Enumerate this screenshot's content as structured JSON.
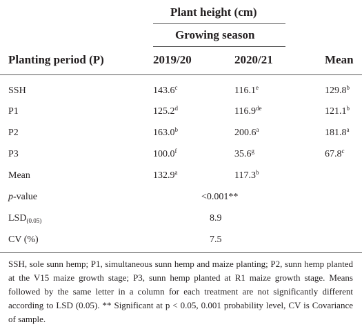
{
  "header": {
    "group_title": "Plant height (cm)",
    "subgroup_title": "Growing season",
    "row_header": "Planting period (P)",
    "col_2019": "2019/20",
    "col_2020": "2020/21",
    "col_mean": "Mean"
  },
  "rows": [
    {
      "label": "SSH",
      "v1": "143.6",
      "s1": "c",
      "v2": "116.1",
      "s2": "e",
      "v3": "129.8",
      "s3": "b"
    },
    {
      "label": "P1",
      "v1": "125.2",
      "s1": "d",
      "v2": "116.9",
      "s2": "de",
      "v3": "121.1",
      "s3": "b"
    },
    {
      "label": "P2",
      "v1": "163.0",
      "s1": "b",
      "v2": "200.6",
      "s2": "a",
      "v3": "181.8",
      "s3": "a"
    },
    {
      "label": "P3",
      "v1": "100.0",
      "s1": "f",
      "v2": "35.6",
      "s2": "g",
      "v3": "67.8",
      "s3": "c"
    },
    {
      "label": "Mean",
      "v1": "132.9",
      "s1": "a",
      "v2": "117.3",
      "s2": "b",
      "v3": "",
      "s3": ""
    }
  ],
  "stats": {
    "pvalue_label": "p",
    "pvalue_label_suffix": "-value",
    "pvalue": "<0.001**",
    "lsd_label": "LSD",
    "lsd_sub": "(0.05)",
    "lsd_value": "8.9",
    "cv_label": "CV (%)",
    "cv_value": "7.5"
  },
  "footnote": "SSH, sole sunn hemp; P1, simultaneous sunn hemp and maize planting; P2, sunn hemp planted at the V15 maize growth stage; P3, sunn hemp planted at R1 maize growth stage. Means followed by the same letter in a column for each treatment are not significantly different according to LSD (0.05). ** Significant at p < 0.05, 0.001 probability level, CV is Covariance of sample."
}
